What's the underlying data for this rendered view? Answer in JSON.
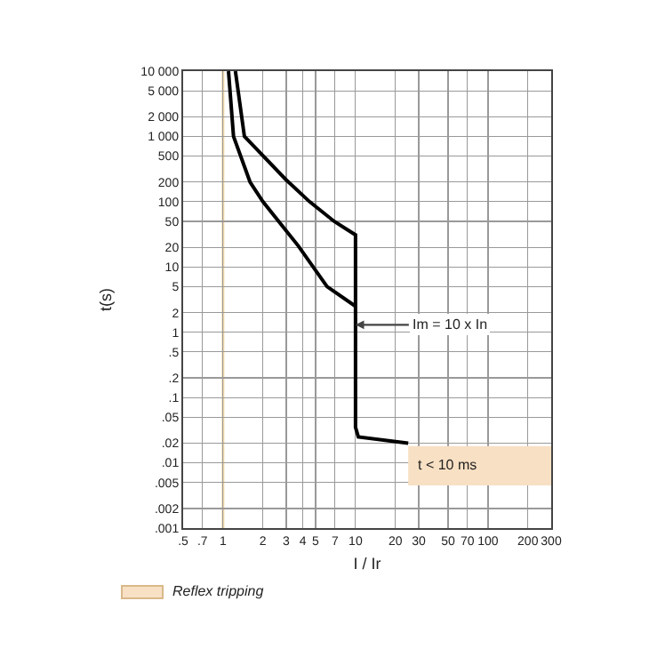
{
  "chart_data": {
    "type": "line",
    "xlabel": "I / Ir",
    "ylabel": "t(s)",
    "log": "xy",
    "series": [
      {
        "color": "#000000",
        "x": [
          1.24,
          1.45,
          2.97,
          4.5,
          6.9,
          10,
          10,
          10.5,
          25
        ],
        "values": [
          10000,
          1000,
          220,
          100,
          50,
          31,
          0.035,
          0.025,
          0.02
        ]
      },
      {
        "color": "#000000",
        "x": [
          1.1,
          1.2,
          1.6,
          2.0,
          3.7,
          6.1,
          10
        ],
        "values": [
          10000,
          1000,
          200,
          100,
          21,
          5,
          2.5
        ]
      }
    ],
    "xlim": [
      0.5,
      300
    ],
    "ylim": [
      0.001,
      10000
    ],
    "xticks": [
      {
        "value": 0.5,
        "label": ".5"
      },
      {
        "value": 0.7,
        "label": ".7"
      },
      1,
      2,
      3,
      4,
      5,
      7,
      10,
      20,
      30,
      50,
      70,
      100,
      200,
      300
    ],
    "yticks": [
      {
        "value": 10000,
        "label": "10 000"
      },
      {
        "value": 5000,
        "label": "5 000"
      },
      {
        "value": 2000,
        "label": "2 000"
      },
      {
        "value": 1000,
        "label": "1 000"
      },
      500,
      200,
      100,
      50,
      20,
      10,
      5,
      2,
      1,
      {
        "value": 0.5,
        "label": ".5"
      },
      {
        "value": 0.2,
        "label": ".2"
      },
      {
        "value": 0.1,
        "label": ".1"
      },
      {
        "value": 0.05,
        "label": ".05"
      },
      {
        "value": 0.02,
        "label": ".02"
      },
      {
        "value": 0.01,
        "label": ".01"
      },
      {
        "value": 0.005,
        "label": ".005"
      },
      {
        "value": 0.002,
        "label": ".002"
      },
      {
        "value": 0.001,
        "label": ".001"
      }
    ],
    "grid": true,
    "marker": "none",
    "line_style": "solid",
    "ref_lines": [
      {
        "axis": "x",
        "value": 1,
        "color": "#f3d9a8"
      }
    ],
    "bands": [
      {
        "axis": "y",
        "from": 0.0045,
        "to": 0.018,
        "label": "t < 10 ms",
        "color": "#f8e0c4"
      }
    ],
    "annotations": [
      {
        "text": "Im = 10 x In",
        "x": 10,
        "y": 1.3
      },
      "Reflex tripping"
    ]
  }
}
